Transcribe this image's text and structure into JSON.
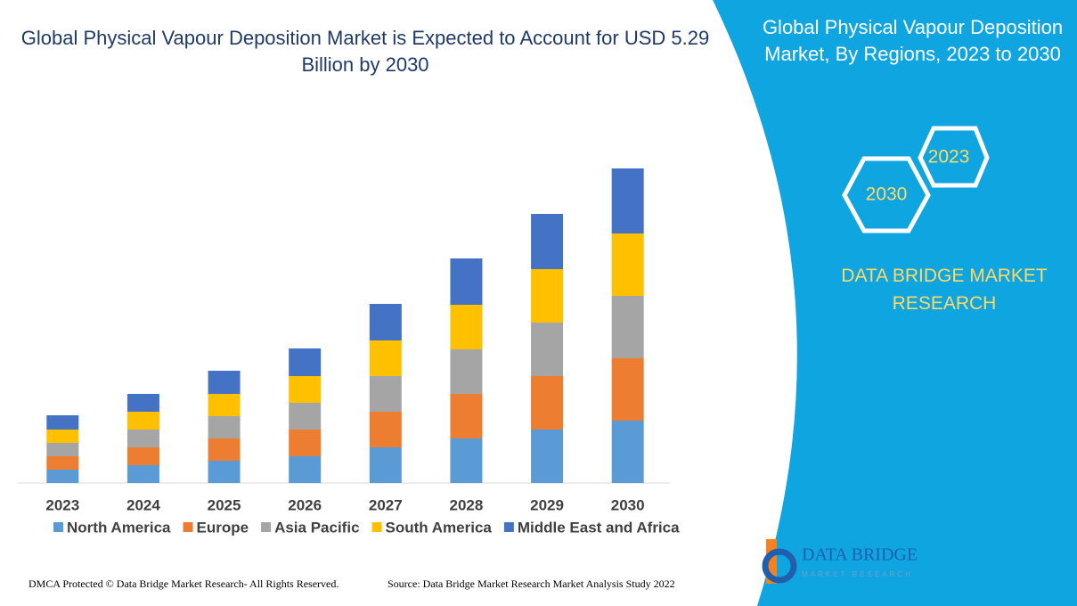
{
  "chart_data": {
    "type": "stacked_bar",
    "title": "Global Physical Vapour Deposition Market is Expected to Account for USD 5.29 Billion by 2030",
    "categories": [
      "2023",
      "2024",
      "2025",
      "2026",
      "2027",
      "2028",
      "2029",
      "2030"
    ],
    "series": [
      {
        "name": "North America",
        "color": "#5b9bd5",
        "values": [
          15,
          20,
          25,
          30,
          40,
          50,
          60,
          70
        ]
      },
      {
        "name": "Europe",
        "color": "#ed7d31",
        "values": [
          15,
          20,
          25,
          30,
          40,
          50,
          60,
          70
        ]
      },
      {
        "name": "Asia Pacific",
        "color": "#a5a5a5",
        "values": [
          15,
          20,
          25,
          30,
          40,
          50,
          60,
          70
        ]
      },
      {
        "name": "South America",
        "color": "#ffc000",
        "values": [
          15,
          20,
          25,
          30,
          40,
          50,
          60,
          70
        ]
      },
      {
        "name": "Middle East and Africa",
        "color": "#4472c4",
        "values": [
          16,
          20,
          26,
          31,
          41,
          52,
          62,
          73
        ]
      }
    ],
    "ylim": [
      0,
      360
    ]
  },
  "panel": {
    "title": "Global Physical Vapour Deposition Market, By Regions, 2023 to 2030",
    "hex_labels": [
      "2023",
      "2030"
    ],
    "brand": "DATA BRIDGE MARKET RESEARCH"
  },
  "logo": {
    "name": "DATA BRIDGE",
    "tagline": "MARKET RESEARCH"
  },
  "footer": {
    "left": "DMCA Protected © Data Bridge Market Research- All Rights Reserved.",
    "right": "Source: Data Bridge Market Research Market Analysis Study 2022"
  }
}
